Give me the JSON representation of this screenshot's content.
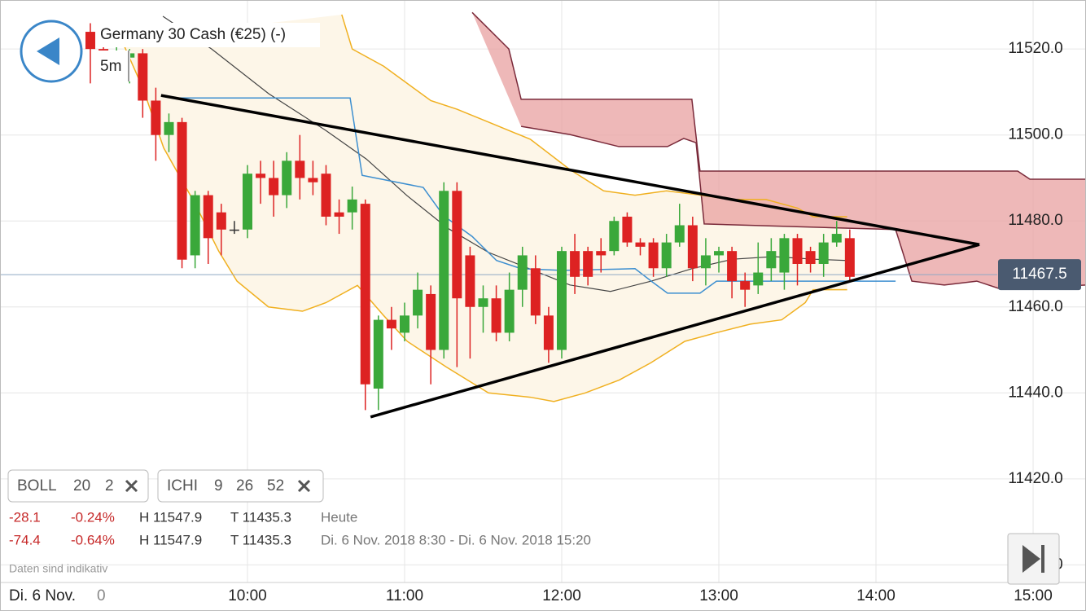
{
  "header": {
    "title": "Germany 30 Cash (€25) (-)",
    "interval": "5m"
  },
  "indicators": [
    {
      "name": "BOLL",
      "params": [
        "20",
        "2"
      ]
    },
    {
      "name": "ICHI",
      "params": [
        "9",
        "26",
        "52"
      ]
    }
  ],
  "stats": [
    {
      "change": "-28.1",
      "percent": "-0.24%",
      "high": "H 11547.9",
      "low": "T 11435.3",
      "period": "Heute"
    },
    {
      "change": "-74.4",
      "percent": "-0.64%",
      "high": "H 11547.9",
      "low": "T 11435.3",
      "period": "Di. 6 Nov. 2018 8:30 - Di. 6 Nov. 2018 15:20"
    }
  ],
  "footer_note": "Daten sind indikativ",
  "date_label": "Di. 6 Nov.",
  "x_label_fragment": "0",
  "chart_data": {
    "type": "candlestick",
    "up_color": "#3aa83a",
    "down_color": "#dd2222",
    "flat_color": "#333333",
    "x": [
      540,
      545,
      550,
      555,
      560,
      565,
      570,
      575,
      580,
      585,
      590,
      595,
      600,
      605,
      610,
      615,
      620,
      625,
      630,
      635,
      640,
      645,
      650,
      655,
      660,
      665,
      670,
      675,
      680,
      685,
      690,
      695,
      700,
      705,
      710,
      715,
      720,
      725,
      730,
      735,
      740,
      745,
      750,
      755,
      760,
      765,
      770,
      775,
      780,
      785,
      790,
      795,
      800,
      805,
      810,
      815,
      820,
      825,
      830
    ],
    "open": [
      11524,
      11520,
      11518,
      11518,
      11519,
      11508,
      11500,
      11503,
      11472,
      11486,
      11482,
      11478,
      11478,
      11491,
      11490,
      11486,
      11494,
      11490,
      11491,
      11482,
      11482,
      11484,
      11441,
      11457,
      11454,
      11458,
      11463,
      11450,
      11487,
      11472,
      11460,
      11462,
      11454,
      11464,
      11469,
      11458,
      11450,
      11473,
      11473,
      11473,
      11473,
      11481,
      11475,
      11475,
      11469,
      11475,
      11479,
      11469,
      11472,
      11473,
      11466,
      11465,
      11469,
      11468,
      11476,
      11473,
      11470,
      11475,
      11476
    ],
    "high": [
      11526,
      11522,
      11521,
      11520,
      11520,
      11511,
      11505,
      11504,
      11487,
      11487,
      11484,
      11480,
      11493,
      11494,
      11494,
      11496,
      11500,
      11494,
      11493,
      11485,
      11488,
      11485,
      11458,
      11460,
      11461,
      11468,
      11465,
      11489,
      11489,
      11474,
      11465,
      11465,
      11468,
      11474,
      11472,
      11460,
      11474,
      11477,
      11474,
      11476,
      11481,
      11482,
      11476,
      11476,
      11477,
      11484,
      11481,
      11476,
      11474,
      11474,
      11468,
      11475,
      11476,
      11477,
      11477,
      11474,
      11477,
      11480,
      11478
    ],
    "low": [
      11512,
      11516,
      11515,
      11512,
      11504,
      11494,
      11496,
      11469,
      11469,
      11470,
      11472,
      11477,
      11476,
      11484,
      11481,
      11483,
      11485,
      11486,
      11479,
      11477,
      11478,
      11436,
      11436,
      11450,
      11452,
      11455,
      11442,
      11448,
      11446,
      11448,
      11454,
      11452,
      11452,
      11460,
      11456,
      11447,
      11448,
      11463,
      11465,
      11468,
      11472,
      11474,
      11472,
      11467,
      11467,
      11474,
      11466,
      11465,
      11468,
      11462,
      11460,
      11463,
      11466,
      11464,
      11465,
      11468,
      11467,
      11474,
      11466
    ],
    "close": [
      11520,
      11519,
      11519,
      11519,
      11508,
      11500,
      11503,
      11471,
      11486,
      11476,
      11478,
      11478,
      11491,
      11490,
      11486,
      11494,
      11490,
      11489,
      11481,
      11481,
      11485,
      11442,
      11457,
      11455,
      11458,
      11464,
      11450,
      11487,
      11462,
      11460,
      11462,
      11454,
      11464,
      11472,
      11458,
      11450,
      11473,
      11467,
      11467,
      11472,
      11480,
      11475,
      11474,
      11469,
      11475,
      11479,
      11469,
      11472,
      11473,
      11466,
      11464,
      11468,
      11473,
      11476,
      11470,
      11470,
      11475,
      11477,
      11467
    ],
    "xlim": [
      505.5,
      920.2
    ],
    "ylim": [
      11395.9,
      11531.4
    ],
    "xticks": [
      {
        "value": 600,
        "label": "10:00"
      },
      {
        "value": 660,
        "label": "11:00"
      },
      {
        "value": 720,
        "label": "12:00"
      },
      {
        "value": 780,
        "label": "13:00"
      },
      {
        "value": 840,
        "label": "14:00"
      },
      {
        "value": 900,
        "label": "15:00"
      }
    ],
    "yticks": [
      {
        "value": 11400,
        "label": "11400.0"
      },
      {
        "value": 11420,
        "label": "11420.0"
      },
      {
        "value": 11440,
        "label": "11440.0"
      },
      {
        "value": 11460,
        "label": "11460.0"
      },
      {
        "value": 11480,
        "label": "11480.0"
      },
      {
        "value": 11500,
        "label": "11500.0"
      },
      {
        "value": 11520,
        "label": "11520.0"
      }
    ],
    "grid": true,
    "last_price": 11467.5,
    "bollinger": {
      "band_color": "#f0b020",
      "fill": "#fdf6e8",
      "upper": {
        "x": [
          636,
          640,
          652,
          661,
          670,
          680,
          692,
          708,
          723,
          736,
          748,
          760,
          773,
          785,
          798,
          810,
          816,
          829
        ],
        "y": [
          11528,
          11520,
          11516,
          11512,
          11508,
          11506,
          11503,
          11499,
          11492,
          11487,
          11486,
          11487,
          11486,
          11485,
          11485,
          11483,
          11481,
          11481
        ]
      },
      "lower": {
        "x": [
          552,
          560,
          568,
          580,
          589,
          596,
          608,
          621,
          630,
          642,
          652,
          661,
          676,
          692,
          708,
          717,
          729,
          742,
          754,
          767,
          779,
          792,
          804,
          813,
          816,
          829
        ],
        "y": [
          11522,
          11511,
          11497,
          11484,
          11473,
          11466,
          11460,
          11459,
          11461,
          11465,
          11458,
          11452,
          11446,
          11440,
          11439,
          11438,
          11440,
          11443,
          11447,
          11452,
          11454,
          11456,
          11457,
          11461,
          11464,
          11464
        ]
      },
      "middle": {
        "color": "#444444",
        "x": [
          567.7,
          586.3,
          608.1,
          629.8,
          645.4,
          660.9,
          676.5,
          692,
          707.6,
          723.1,
          738.6,
          754.2,
          769.7,
          785.3,
          800.8,
          816.4,
          828.8
        ],
        "y": [
          11527.6,
          11520,
          11509.6,
          11501.1,
          11494.4,
          11485.9,
          11478.3,
          11472.7,
          11468.9,
          11465.1,
          11463.6,
          11466,
          11468.9,
          11471.1,
          11471.7,
          11471.1,
          11470.8
        ]
      }
    },
    "ichimoku": {
      "cloud_color": "#e8a0a0",
      "line_color": "#7a2a3a",
      "kijun_color": "#3d8fd0",
      "span_a": {
        "x": [
          685.8,
          699.8,
          704.5,
          769.7,
          772.8,
          894.1,
          898.8,
          920.2
        ],
        "y": [
          11528.5,
          11520,
          11508.3,
          11508.3,
          11491.6,
          11491.6,
          11489.7,
          11489.7
        ]
      },
      "span_b": {
        "x": [
          704.5,
          723.1,
          741.8,
          760.4,
          766.6,
          771.3,
          774.4,
          847.5,
          853.7,
          866.1,
          878.5,
          887.9,
          920.2
        ],
        "y": [
          11502,
          11500.1,
          11497.3,
          11497.3,
          11499.2,
          11498.2,
          11479.3,
          11478,
          11466,
          11465.1,
          11466,
          11464.1,
          11465.1
        ]
      },
      "kijun": {
        "x": [
          570.8,
          639.2,
          643.8,
          667.1,
          674.9,
          685.8,
          695.1,
          704.5,
          720,
          748,
          754.2,
          760.4,
          772.8,
          779.1,
          847.5
        ],
        "y": [
          11508.6,
          11508.6,
          11490.6,
          11487.8,
          11481.2,
          11476.4,
          11470.8,
          11468.9,
          11468.5,
          11468.9,
          11466,
          11463.2,
          11463.2,
          11466,
          11466
        ]
      }
    },
    "trend_lines": [
      {
        "x": [
          567,
          879.5
        ],
        "y": [
          11509.2,
          11474.5
        ]
      },
      {
        "x": [
          647,
          879.5
        ],
        "y": [
          11434.4,
          11474.5
        ]
      }
    ]
  }
}
